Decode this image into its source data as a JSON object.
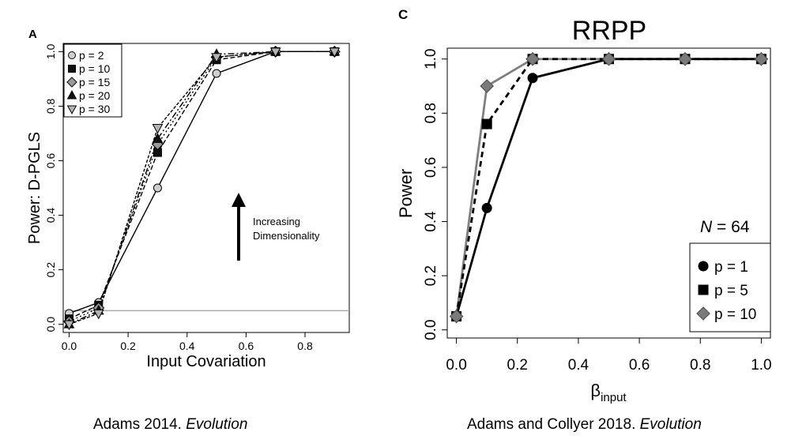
{
  "panel_a": {
    "letter": "A",
    "caption_main": "Adams 2014. ",
    "caption_journal": "Evolution",
    "annotation": [
      "Increasing",
      "Dimensionality"
    ]
  },
  "panel_c": {
    "letter": "C",
    "caption_main": "Adams and Collyer 2018. ",
    "caption_journal": "Evolution",
    "n_label": "N",
    "n_value": " = 64"
  },
  "chart_data": [
    {
      "type": "line",
      "title": "",
      "xlabel": "Input Covariation",
      "ylabel": "Power: D-PGLS",
      "xlim": [
        -0.02,
        0.95
      ],
      "ylim": [
        -0.03,
        1.03
      ],
      "x_ticks": [
        "0.0",
        "0.2",
        "0.4",
        "0.6",
        "0.8"
      ],
      "y_ticks": [
        "0.0",
        "0.2",
        "0.4",
        "0.6",
        "0.8",
        "1.0"
      ],
      "reference_line": 0.05,
      "grid": false,
      "legend_position": "top-left",
      "x": [
        0.0,
        0.1,
        0.3,
        0.5,
        0.7,
        0.9
      ],
      "series": [
        {
          "name": "p = 2",
          "marker": "circle",
          "fill": "#cfcfcf",
          "dash": "",
          "values": [
            0.04,
            0.08,
            0.5,
            0.92,
            1.0,
            1.0
          ]
        },
        {
          "name": "p = 10",
          "marker": "square",
          "fill": "#111111",
          "dash": "6 3",
          "values": [
            0.02,
            0.07,
            0.63,
            0.97,
            1.0,
            1.0
          ]
        },
        {
          "name": "p = 15",
          "marker": "diamond",
          "fill": "#9a9a9a",
          "dash": "2 3",
          "values": [
            0.01,
            0.06,
            0.66,
            0.98,
            1.0,
            1.0
          ]
        },
        {
          "name": "p = 20",
          "marker": "triangle",
          "fill": "#111111",
          "dash": "8 3 2 3",
          "values": [
            0.0,
            0.05,
            0.68,
            0.99,
            1.0,
            1.0
          ]
        },
        {
          "name": "p = 30",
          "marker": "tri-down",
          "fill": "#b3b3b3",
          "dash": "4 2",
          "values": [
            0.0,
            0.04,
            0.72,
            0.98,
            1.0,
            1.0
          ]
        }
      ]
    },
    {
      "type": "line",
      "title": "RRPP",
      "xlabel": "βinput",
      "ylabel": "Power",
      "xlim": [
        -0.03,
        1.03
      ],
      "ylim": [
        -0.03,
        1.04
      ],
      "x_ticks": [
        "0.0",
        "0.2",
        "0.4",
        "0.6",
        "0.8",
        "1.0"
      ],
      "y_ticks": [
        "0.0",
        "0.2",
        "0.4",
        "0.6",
        "0.8",
        "1.0"
      ],
      "grid": false,
      "legend_position": "bottom-right",
      "x": [
        0.0,
        0.1,
        0.25,
        0.5,
        0.75,
        1.0
      ],
      "series": [
        {
          "name": "p = 1",
          "marker": "circle",
          "fill": "#000000",
          "stroke": "#000000",
          "dash": "",
          "values": [
            0.05,
            0.45,
            0.93,
            1.0,
            1.0,
            1.0
          ]
        },
        {
          "name": "p = 5",
          "marker": "square",
          "fill": "#000000",
          "stroke": "#000000",
          "dash": "7 5",
          "values": [
            0.05,
            0.76,
            1.0,
            1.0,
            1.0,
            1.0
          ]
        },
        {
          "name": "p = 10",
          "marker": "diamond",
          "fill": "#7a7a7a",
          "stroke": "#7f7f7f",
          "dash": "",
          "values": [
            0.05,
            0.9,
            1.0,
            1.0,
            1.0,
            1.0
          ]
        }
      ]
    }
  ]
}
